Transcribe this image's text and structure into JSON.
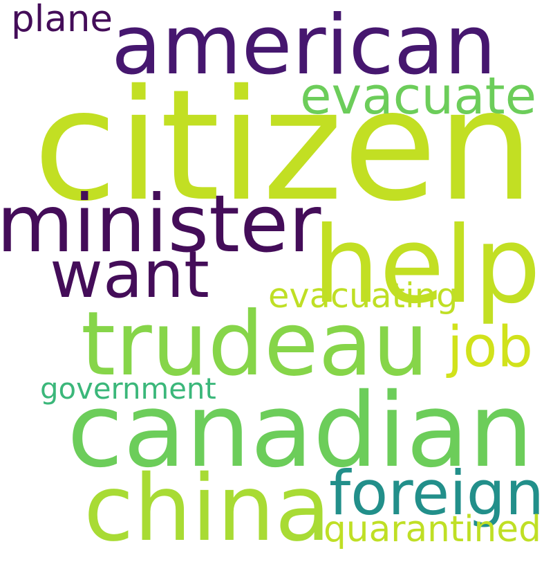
{
  "words": [
    {
      "text": "citizen",
      "color": "#c2df23",
      "weight": 1.0
    },
    {
      "text": "american",
      "color": "#46176f",
      "weight": 0.62
    },
    {
      "text": "help",
      "color": "#c2df23",
      "weight": 0.7
    },
    {
      "text": "minister",
      "color": "#440d59",
      "weight": 0.6
    },
    {
      "text": "trudeau",
      "color": "#86d549",
      "weight": 0.65
    },
    {
      "text": "canadian",
      "color": "#6ccd5a",
      "weight": 0.78
    },
    {
      "text": "want",
      "color": "#440d59",
      "weight": 0.55
    },
    {
      "text": "china",
      "color": "#a8db34",
      "weight": 0.7
    },
    {
      "text": "foreign",
      "color": "#228f8a",
      "weight": 0.45
    },
    {
      "text": "evacuate",
      "color": "#6ccd5a",
      "weight": 0.4
    },
    {
      "text": "job",
      "color": "#d1e21b",
      "weight": 0.35
    },
    {
      "text": "evacuating",
      "color": "#bfdf25",
      "weight": 0.25
    },
    {
      "text": "government",
      "color": "#3bb77a",
      "weight": 0.23
    },
    {
      "text": "quarantined",
      "color": "#bfdf25",
      "weight": 0.23
    },
    {
      "text": "plane",
      "color": "#440d59",
      "weight": 0.23
    }
  ]
}
